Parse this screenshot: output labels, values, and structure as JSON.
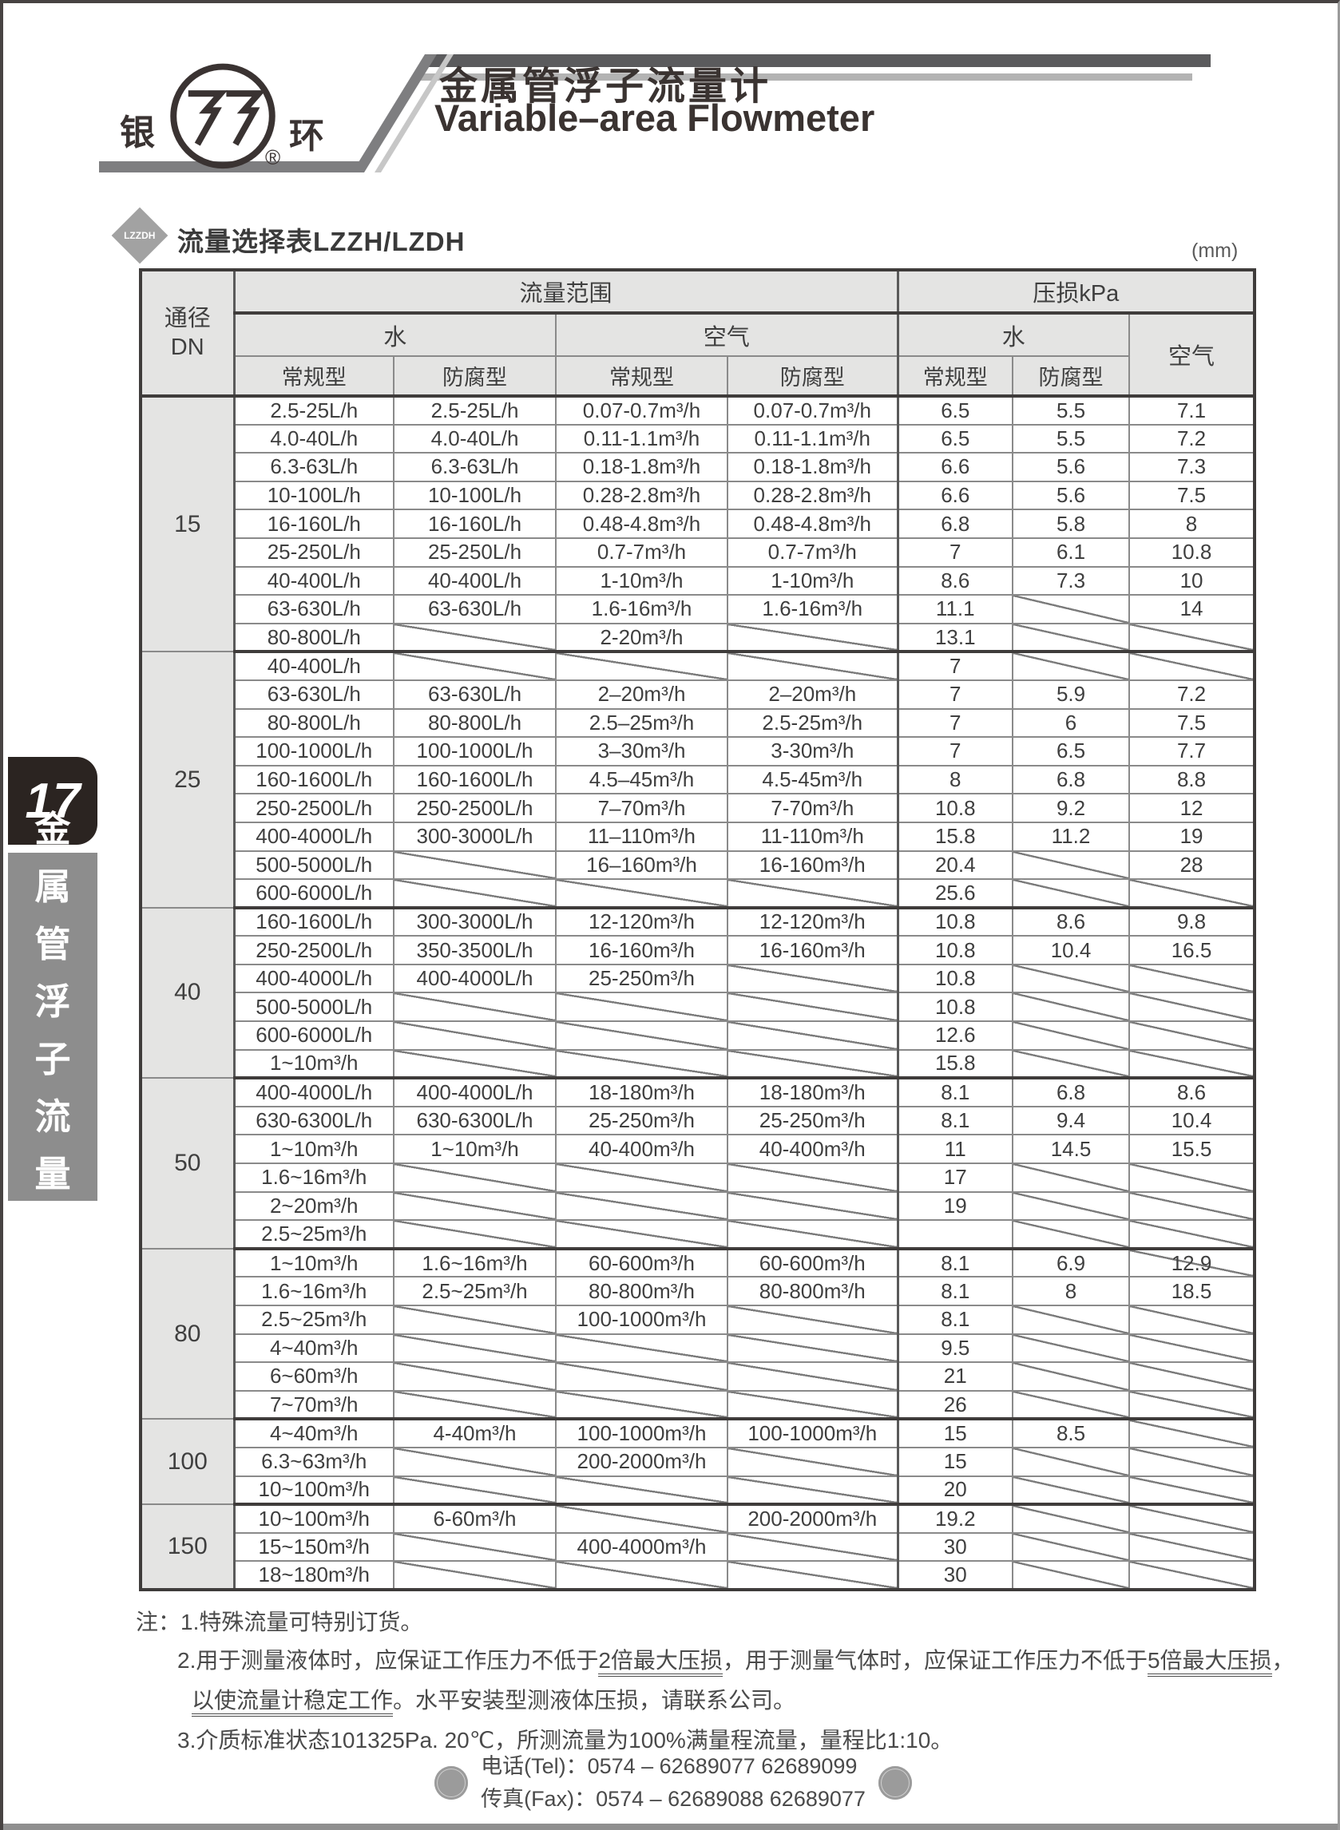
{
  "header": {
    "brand_left": "银",
    "brand_right": "环",
    "reg_mark": "®",
    "title_cn": "金属管浮子流量计",
    "title_en": "Variable–area Flowmeter"
  },
  "sidebar": {
    "page_no": "17",
    "vertical_title": "金属管浮子流量计"
  },
  "section": {
    "icon_text": "LZZDH",
    "title": "流量选择表LZZH/LZDH",
    "unit": "(mm)"
  },
  "table": {
    "header": {
      "dn_line1": "通径",
      "dn_line2": "DN",
      "flow_range": "流量范围",
      "pressure_loss": "压损kPa",
      "water": "水",
      "air": "空气",
      "standard": "常规型",
      "anticorrosion": "防腐型"
    },
    "groups": [
      {
        "dn": "15",
        "rows": [
          [
            "2.5-25L/h",
            "2.5-25L/h",
            "0.07-0.7m³/h",
            "0.07-0.7m³/h",
            "6.5",
            "5.5",
            "7.1"
          ],
          [
            "4.0-40L/h",
            "4.0-40L/h",
            "0.11-1.1m³/h",
            "0.11-1.1m³/h",
            "6.5",
            "5.5",
            "7.2"
          ],
          [
            "6.3-63L/h",
            "6.3-63L/h",
            "0.18-1.8m³/h",
            "0.18-1.8m³/h",
            "6.6",
            "5.6",
            "7.3"
          ],
          [
            "10-100L/h",
            "10-100L/h",
            "0.28-2.8m³/h",
            "0.28-2.8m³/h",
            "6.6",
            "5.6",
            "7.5"
          ],
          [
            "16-160L/h",
            "16-160L/h",
            "0.48-4.8m³/h",
            "0.48-4.8m³/h",
            "6.8",
            "5.8",
            "8"
          ],
          [
            "25-250L/h",
            "25-250L/h",
            "0.7-7m³/h",
            "0.7-7m³/h",
            "7",
            "6.1",
            "10.8"
          ],
          [
            "40-400L/h",
            "40-400L/h",
            "1-10m³/h",
            "1-10m³/h",
            "8.6",
            "7.3",
            "10"
          ],
          [
            "63-630L/h",
            "63-630L/h",
            "1.6-16m³/h",
            "1.6-16m³/h",
            "11.1",
            null,
            "14"
          ],
          [
            "80-800L/h",
            null,
            "2-20m³/h",
            null,
            "13.1",
            null,
            null
          ]
        ]
      },
      {
        "dn": "25",
        "rows": [
          [
            "40-400L/h",
            null,
            null,
            null,
            "7",
            null,
            null
          ],
          [
            "63-630L/h",
            "63-630L/h",
            "2–20m³/h",
            "2–20m³/h",
            "7",
            "5.9",
            "7.2"
          ],
          [
            "80-800L/h",
            "80-800L/h",
            "2.5–25m³/h",
            "2.5-25m³/h",
            "7",
            "6",
            "7.5"
          ],
          [
            "100-1000L/h",
            "100-1000L/h",
            "3–30m³/h",
            "3-30m³/h",
            "7",
            "6.5",
            "7.7"
          ],
          [
            "160-1600L/h",
            "160-1600L/h",
            "4.5–45m³/h",
            "4.5-45m³/h",
            "8",
            "6.8",
            "8.8"
          ],
          [
            "250-2500L/h",
            "250-2500L/h",
            "7–70m³/h",
            "7-70m³/h",
            "10.8",
            "9.2",
            "12"
          ],
          [
            "400-4000L/h",
            "300-3000L/h",
            "11–110m³/h",
            "11-110m³/h",
            "15.8",
            "11.2",
            "19"
          ],
          [
            "500-5000L/h",
            null,
            "16–160m³/h",
            "16-160m³/h",
            "20.4",
            null,
            "28"
          ],
          [
            "600-6000L/h",
            null,
            null,
            null,
            "25.6",
            null,
            null
          ]
        ]
      },
      {
        "dn": "40",
        "rows": [
          [
            "160-1600L/h",
            "300-3000L/h",
            "12-120m³/h",
            "12-120m³/h",
            "10.8",
            "8.6",
            "9.8"
          ],
          [
            "250-2500L/h",
            "350-3500L/h",
            "16-160m³/h",
            "16-160m³/h",
            "10.8",
            "10.4",
            "16.5"
          ],
          [
            "400-4000L/h",
            "400-4000L/h",
            "25-250m³/h",
            null,
            "10.8",
            null,
            null
          ],
          [
            "500-5000L/h",
            null,
            null,
            null,
            "10.8",
            null,
            null
          ],
          [
            "600-6000L/h",
            null,
            null,
            null,
            "12.6",
            null,
            null
          ],
          [
            "1~10m³/h",
            null,
            null,
            null,
            "15.8",
            null,
            null
          ]
        ]
      },
      {
        "dn": "50",
        "rows": [
          [
            "400-4000L/h",
            "400-4000L/h",
            "18-180m³/h",
            "18-180m³/h",
            "8.1",
            "6.8",
            "8.6"
          ],
          [
            "630-6300L/h",
            "630-6300L/h",
            "25-250m³/h",
            "25-250m³/h",
            "8.1",
            "9.4",
            "10.4"
          ],
          [
            "1~10m³/h",
            "1~10m³/h",
            "40-400m³/h",
            "40-400m³/h",
            "11",
            "14.5",
            "15.5"
          ],
          [
            "1.6~16m³/h",
            null,
            null,
            null,
            "17",
            null,
            null
          ],
          [
            "2~20m³/h",
            null,
            null,
            null,
            "19",
            null,
            null
          ],
          [
            "2.5~25m³/h",
            null,
            null,
            null,
            "",
            null,
            null
          ]
        ]
      },
      {
        "dn": "80",
        "rows": [
          [
            "1~10m³/h",
            "1.6~16m³/h",
            "60-600m³/h",
            "60-600m³/h",
            "8.1",
            "6.9",
            {
              "t": "12.9",
              "diag": true
            }
          ],
          [
            "1.6~16m³/h",
            "2.5~25m³/h",
            "80-800m³/h",
            "80-800m³/h",
            "8.1",
            "8",
            "18.5"
          ],
          [
            "2.5~25m³/h",
            null,
            "100-1000m³/h",
            null,
            "8.1",
            null,
            null
          ],
          [
            "4~40m³/h",
            null,
            null,
            null,
            "9.5",
            null,
            null
          ],
          [
            "6~60m³/h",
            null,
            null,
            null,
            "21",
            null,
            null
          ],
          [
            "7~70m³/h",
            null,
            null,
            null,
            "26",
            null,
            null
          ]
        ]
      },
      {
        "dn": "100",
        "rows": [
          [
            "4~40m³/h",
            "4-40m³/h",
            "100-1000m³/h",
            "100-1000m³/h",
            "15",
            "8.5",
            null
          ],
          [
            "6.3~63m³/h",
            null,
            "200-2000m³/h",
            null,
            "15",
            null,
            null
          ],
          [
            "10~100m³/h",
            null,
            null,
            null,
            "20",
            null,
            null
          ]
        ]
      },
      {
        "dn": "150",
        "rows": [
          [
            "10~100m³/h",
            "6-60m³/h",
            null,
            "200-2000m³/h",
            "19.2",
            null,
            null
          ],
          [
            "15~150m³/h",
            null,
            "400-4000m³/h",
            null,
            "30",
            null,
            null
          ],
          [
            "18~180m³/h",
            null,
            null,
            null,
            "30",
            null,
            null
          ]
        ]
      }
    ]
  },
  "notes": {
    "label": "注：",
    "n1": "1.特殊流量可特别订货。",
    "n2a": "2.用于测量液体时，应保证工作压力不低于",
    "n2u1": "2倍最大压损",
    "n2b": "，用于测量气体时，应保证工作压力不低于",
    "n2u2": "5倍最大压损",
    "n2c": "，",
    "n2u3": "以使流量计稳定工作",
    "n2d": "。水平安装型测液体压损，请联系公司。",
    "n3": "3.介质标准状态101325Pa. 20℃，所测流量为100%满量程流量，量程比1:10。"
  },
  "contact": {
    "tel_label": "电话(Tel)：",
    "tel": "0574 – 62689077  62689099",
    "fax_label": "传真(Fax)：",
    "fax": "0574 – 62689088  62689077"
  }
}
